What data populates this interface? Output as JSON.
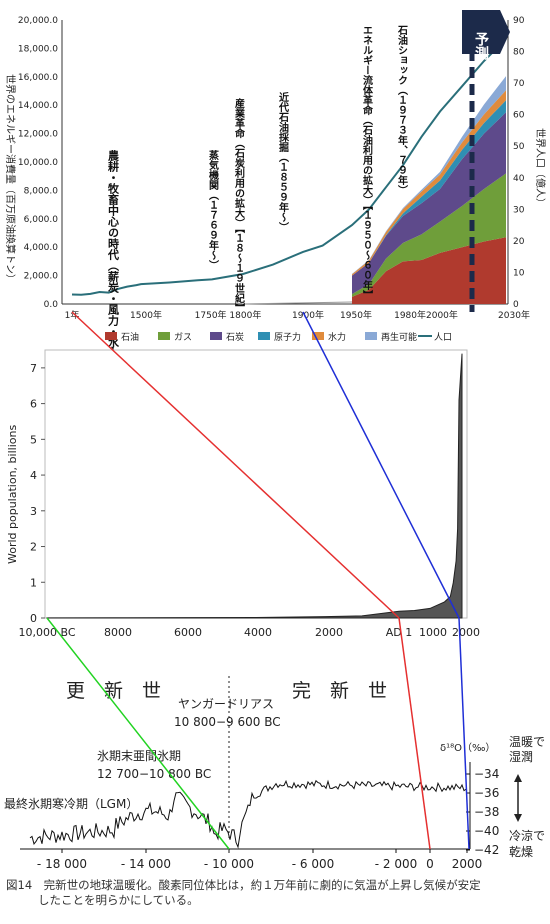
{
  "chart_data": [
    {
      "type": "area",
      "ylabel_left": "世界のエネルギー消費量（百万原油換算トン）",
      "ylabel_right": "世界人口（億人）",
      "ylim_left": [
        0,
        20000
      ],
      "ylim_right": [
        0,
        90
      ],
      "yticks_left": [
        "0.0",
        "2,000.0",
        "4,000.0",
        "6,000.0",
        "8,000.0",
        "10,000.0",
        "12,000.0",
        "14,000.0",
        "16,000.0",
        "18,000.0",
        "20,000.0"
      ],
      "yticks_right": [
        "0",
        "10",
        "20",
        "30",
        "40",
        "50",
        "60",
        "70",
        "80",
        "90"
      ],
      "xticks": [
        "1年",
        "1500年",
        "1750年 1800年",
        "1900年",
        "1950年",
        "1980年2000年",
        "2030年"
      ],
      "x": [
        1950,
        1960,
        1970,
        1980,
        1990,
        2000,
        2010,
        2020,
        2030
      ],
      "series": [
        {
          "name": "石油",
          "color": "#b03a2e",
          "values": [
            500,
            1000,
            2300,
            3000,
            3100,
            3600,
            4000,
            4400,
            4700
          ]
        },
        {
          "name": "ガス",
          "color": "#6f9e3a",
          "values": [
            200,
            400,
            900,
            1300,
            1800,
            2200,
            2900,
            3700,
            4500
          ]
        },
        {
          "name": "石炭",
          "color": "#5e4a8b",
          "values": [
            1300,
            1500,
            1600,
            1900,
            2200,
            2300,
            3300,
            3900,
            4300
          ]
        },
        {
          "name": "原子力",
          "color": "#2f8fb3",
          "values": [
            0,
            10,
            50,
            180,
            450,
            600,
            650,
            750,
            850
          ]
        },
        {
          "name": "水力",
          "color": "#e08b3c",
          "values": [
            100,
            150,
            220,
            300,
            370,
            420,
            520,
            600,
            700
          ]
        },
        {
          "name": "再生可能",
          "color": "#8aa9d6",
          "values": [
            20,
            40,
            60,
            80,
            120,
            180,
            400,
            700,
            1000
          ]
        }
      ],
      "population_line": {
        "name": "人口",
        "color": "#2a6f7a",
        "x": [
          1,
          200,
          400,
          600,
          800,
          1000,
          1200,
          1400,
          1500,
          1600,
          1700,
          1750,
          1800,
          1850,
          1900,
          1920,
          1950,
          1960,
          1970,
          1980,
          1990,
          2000,
          2010,
          2020,
          2030
        ],
        "values": [
          3.0,
          2.9,
          3.2,
          3.8,
          3.6,
          4.8,
          5.5,
          6.0,
          6.3,
          6.8,
          7.5,
          7.8,
          9.5,
          12.5,
          16.5,
          18.5,
          25,
          30,
          37,
          44,
          53,
          61,
          69,
          77,
          84
        ]
      },
      "annotations": [
        "農耕・牧畜中心の時代（薪炭・風力・水力）",
        "蒸気機関（１７６９年〜）",
        "産業革命（石炭利用の拡大）【１８〜１９世紀】",
        "近代石油採掘（１８５９年〜）",
        "エネルギー流体革命（石油利用の拡大）【１９５０〜６０年】",
        "石油ショック（１９７３年、７９年）"
      ],
      "forecast_label": "予測",
      "legend": [
        "石油",
        "ガス",
        "石炭",
        "原子力",
        "水力",
        "再生可能",
        "人口"
      ]
    },
    {
      "type": "area",
      "ylabel": "World population, billions",
      "ylim": [
        0,
        7.5
      ],
      "yticks": [
        "0",
        "1",
        "2",
        "3",
        "4",
        "5",
        "6",
        "7"
      ],
      "xticks": [
        "10,000 BC",
        "8000",
        "6000",
        "4000",
        "2000",
        "AD 1",
        "1000",
        "2000"
      ],
      "x": [
        -10000,
        -8000,
        -6000,
        -4000,
        -2000,
        -1000,
        1,
        500,
        1000,
        1500,
        1700,
        1800,
        1900,
        1950,
        2000,
        2015
      ],
      "values": [
        0.002,
        0.005,
        0.01,
        0.015,
        0.04,
        0.06,
        0.19,
        0.21,
        0.27,
        0.45,
        0.6,
        0.98,
        1.6,
        2.5,
        6.1,
        7.4
      ]
    },
    {
      "type": "line",
      "era_left": "更　新　世",
      "era_right": "完　新　世",
      "younger_dryas": [
        "ヤンガードリアス",
        "10 800−9 600 BC"
      ],
      "late_glacial": [
        "氷期末亜間氷期",
        "12 700−10 800 BC"
      ],
      "lgm": "最終氷期寒冷期（LGM）",
      "ylabel": "δ¹⁸O（‰）",
      "warm_label": [
        "温暖で",
        "湿潤"
      ],
      "cold_label": [
        "冷涼で",
        "乾燥"
      ],
      "yticks": [
        "−34",
        "−36",
        "−38",
        "−40",
        "−42"
      ],
      "xticks": [
        "- 18 000",
        "- 14 000",
        "- 10 000",
        "- 6 000",
        "- 2 000",
        "0",
        "2000"
      ]
    }
  ],
  "caption": {
    "line1": "図14　完新世の地球温暖化。酸素同位体比は，約１万年前に劇的に気温が上昇し気候が安定",
    "line2": "したことを明らかにしている。"
  }
}
